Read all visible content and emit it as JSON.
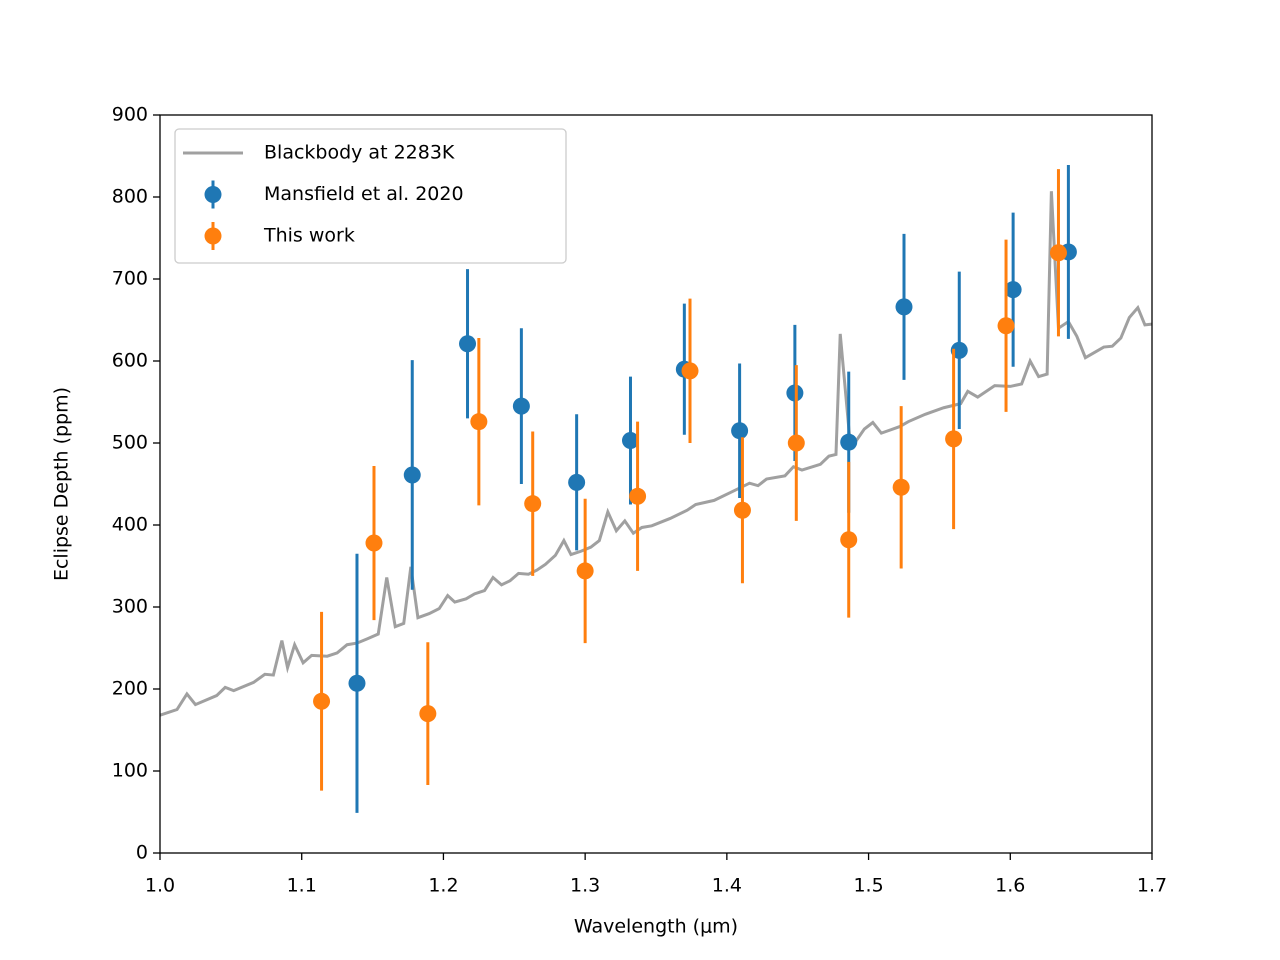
{
  "chart_data": {
    "type": "line",
    "xlabel": "Wavelength (μm)",
    "ylabel": "Eclipse Depth (ppm)",
    "xlim": [
      1.0,
      1.7
    ],
    "xticks": [
      {
        "value": 1.0,
        "label": "1.0"
      },
      1.1,
      1.2,
      1.3,
      1.4,
      1.5,
      1.6,
      1.7
    ],
    "ylim": [
      0,
      900
    ],
    "yticks": [
      0,
      100,
      200,
      300,
      400,
      500,
      600,
      700,
      800,
      900
    ],
    "legend": "upper left",
    "series": [
      {
        "name": "Blackbody at 2283K",
        "kind": "line",
        "color": "#a0a0a0",
        "x": [
          1.0,
          1.012,
          1.019,
          1.025,
          1.04,
          1.046,
          1.052,
          1.066,
          1.074,
          1.08,
          1.086,
          1.09,
          1.095,
          1.101,
          1.107,
          1.118,
          1.125,
          1.132,
          1.139,
          1.146,
          1.154,
          1.16,
          1.166,
          1.172,
          1.177,
          1.182,
          1.19,
          1.197,
          1.203,
          1.208,
          1.216,
          1.222,
          1.229,
          1.235,
          1.241,
          1.247,
          1.253,
          1.26,
          1.266,
          1.272,
          1.279,
          1.285,
          1.29,
          1.297,
          1.304,
          1.31,
          1.316,
          1.322,
          1.328,
          1.334,
          1.34,
          1.347,
          1.36,
          1.372,
          1.378,
          1.391,
          1.403,
          1.416,
          1.422,
          1.428,
          1.441,
          1.447,
          1.453,
          1.466,
          1.472,
          1.477,
          1.48,
          1.487,
          1.491,
          1.497,
          1.503,
          1.509,
          1.522,
          1.528,
          1.54,
          1.553,
          1.565,
          1.57,
          1.577,
          1.589,
          1.6,
          1.608,
          1.614,
          1.62,
          1.626,
          1.629,
          1.634,
          1.641,
          1.647,
          1.653,
          1.666,
          1.672,
          1.678,
          1.684,
          1.69,
          1.695,
          1.7
        ],
        "values": [
          168,
          175,
          194,
          181,
          192,
          202,
          198,
          208,
          218,
          217,
          259,
          226,
          254,
          232,
          241,
          240,
          244,
          254,
          256,
          261,
          267,
          336,
          276,
          280,
          349,
          287,
          292,
          298,
          314,
          306,
          310,
          316,
          320,
          336,
          327,
          332,
          341,
          340,
          345,
          352,
          363,
          381,
          364,
          368,
          373,
          381,
          416,
          393,
          405,
          390,
          397,
          399,
          408,
          418,
          425,
          430,
          440,
          451,
          448,
          456,
          460,
          471,
          467,
          474,
          484,
          486,
          633,
          500,
          502,
          517,
          525,
          512,
          520,
          526,
          535,
          543,
          548,
          563,
          556,
          570,
          569,
          572,
          600,
          581,
          584,
          807,
          640,
          648,
          630,
          604,
          617,
          618,
          628,
          653,
          665,
          644,
          645
        ]
      },
      {
        "name": "Mansfield et al. 2020",
        "kind": "errorbar",
        "color": "#1f77b4",
        "x": [
          1.139,
          1.178,
          1.217,
          1.255,
          1.294,
          1.332,
          1.37,
          1.409,
          1.448,
          1.486,
          1.525,
          1.564,
          1.602,
          1.641
        ],
        "values": [
          207,
          461,
          621,
          545,
          452,
          503,
          590,
          515,
          561,
          501,
          666,
          613,
          687,
          733
        ],
        "errors": [
          158,
          140,
          91,
          95,
          83,
          78,
          80,
          82,
          83,
          86,
          89,
          96,
          94,
          106
        ]
      },
      {
        "name": "This work",
        "kind": "errorbar",
        "color": "#ff7f0e",
        "x": [
          1.114,
          1.151,
          1.189,
          1.225,
          1.263,
          1.3,
          1.337,
          1.374,
          1.411,
          1.449,
          1.486,
          1.523,
          1.56,
          1.597,
          1.634
        ],
        "values": [
          185,
          378,
          170,
          526,
          426,
          344,
          435,
          588,
          418,
          500,
          382,
          446,
          505,
          643,
          732
        ],
        "errors": [
          109,
          94,
          87,
          102,
          88,
          88,
          91,
          88,
          89,
          95,
          95,
          99,
          110,
          105,
          102
        ]
      }
    ]
  }
}
